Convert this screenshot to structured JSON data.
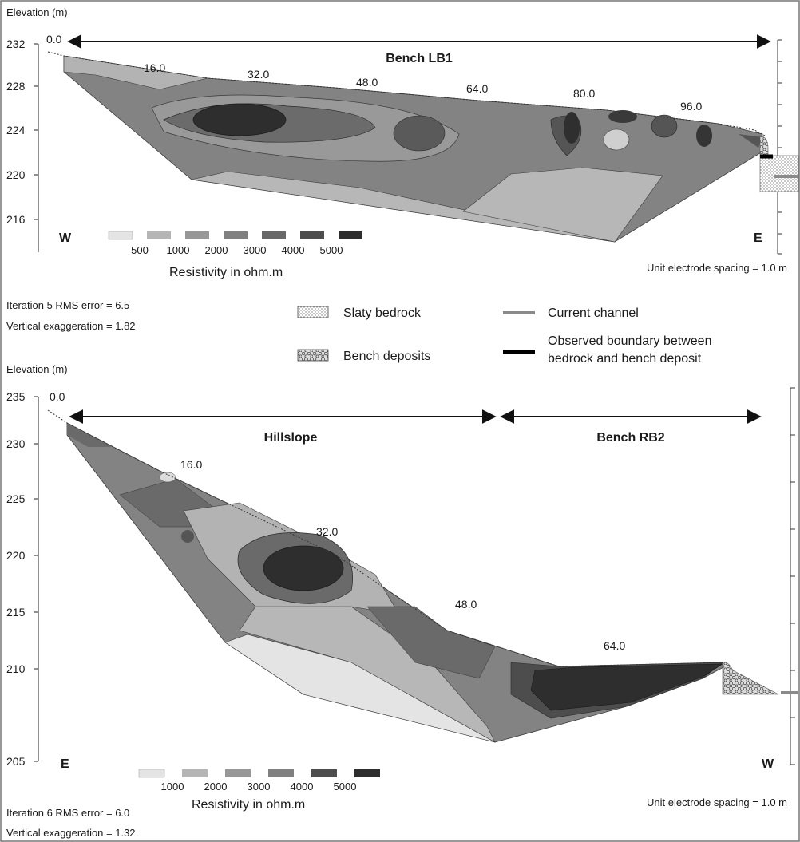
{
  "panel1": {
    "axis_title": "Elevation (m)",
    "y_ticks": [
      "232",
      "228",
      "224",
      "220",
      "216"
    ],
    "distance_labels": [
      "0.0",
      "16.0",
      "32.0",
      "48.0",
      "64.0",
      "80.0",
      "96.0"
    ],
    "span_label": "Bench LB1",
    "left_dir": "W",
    "right_dir": "E",
    "scale_values": [
      "500",
      "1000",
      "2000",
      "3000",
      "4000",
      "5000"
    ],
    "scale_title": "Resistivity in ohm.m",
    "spacing_note": "Unit electrode spacing = 1.0 m",
    "rms_note": "Iteration 5 RMS error = 6.5",
    "ve_note": "Vertical exaggeration = 1.82"
  },
  "legend": {
    "bedrock": "Slaty bedrock",
    "bench": "Bench deposits",
    "channel": "Current channel",
    "boundary_line1": "Observed boundary between",
    "boundary_line2": "bedrock and bench deposit"
  },
  "panel2": {
    "axis_title": "Elevation (m)",
    "y_ticks": [
      "235",
      "230",
      "225",
      "220",
      "215",
      "210",
      "205"
    ],
    "distance_labels": [
      "0.0",
      "16.0",
      "32.0",
      "48.0",
      "64.0"
    ],
    "span_left_label": "Hillslope",
    "span_right_label": "Bench RB2",
    "left_dir": "E",
    "right_dir": "W",
    "scale_values": [
      "1000",
      "2000",
      "3000",
      "4000",
      "5000"
    ],
    "scale_title": "Resistivity in ohm.m",
    "spacing_note": "Unit electrode spacing = 1.0 m",
    "rms_note": "Iteration 6 RMS error = 6.0",
    "ve_note": "Vertical exaggeration = 1.32"
  },
  "colors": {
    "shade_1": "#e4e4e4",
    "shade_2": "#b5b5b5",
    "shade_3": "#979797",
    "shade_4": "#808080",
    "shade_5": "#686868",
    "shade_6": "#4d4d4d",
    "shade_7": "#2e2e2e",
    "channel": "#8a8a8a"
  }
}
